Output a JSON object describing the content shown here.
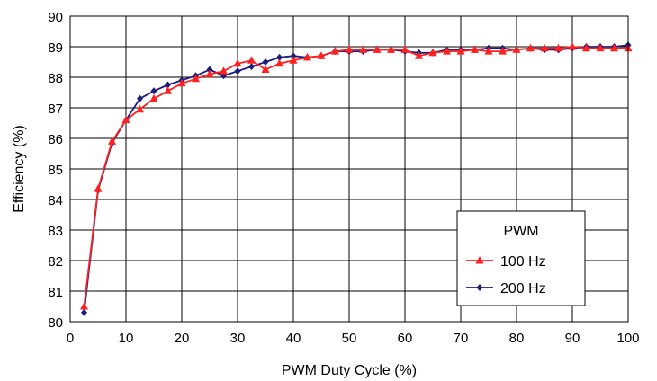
{
  "chart_data": {
    "type": "line",
    "xlabel": "PWM Duty Cycle (%)",
    "ylabel": "Efficiency (%)",
    "xlim": [
      0,
      100
    ],
    "ylim": [
      80,
      90
    ],
    "xticks": [
      0,
      10,
      20,
      30,
      40,
      50,
      60,
      70,
      80,
      90,
      100
    ],
    "yticks": [
      80,
      81,
      82,
      83,
      84,
      85,
      86,
      87,
      88,
      89,
      90
    ],
    "grid": true,
    "legend": {
      "title": "PWM",
      "placement": "bottom-right"
    },
    "x": [
      2.5,
      5,
      7.5,
      10,
      12.5,
      15,
      17.5,
      20,
      22.5,
      25,
      27.5,
      30,
      32.5,
      35,
      37.5,
      40,
      42.5,
      45,
      47.5,
      50,
      52.5,
      55,
      57.5,
      60,
      62.5,
      65,
      67.5,
      70,
      72.5,
      75,
      77.5,
      80,
      82.5,
      85,
      87.5,
      90,
      92.5,
      95,
      97.5,
      100
    ],
    "series": [
      {
        "name": "100 Hz",
        "color": "#ff2020",
        "marker": "triangle",
        "values": [
          80.5,
          84.35,
          85.9,
          86.6,
          86.95,
          87.3,
          87.55,
          87.8,
          87.95,
          88.1,
          88.2,
          88.45,
          88.55,
          88.25,
          88.45,
          88.55,
          88.65,
          88.7,
          88.85,
          88.9,
          88.9,
          88.9,
          88.9,
          88.9,
          88.7,
          88.8,
          88.85,
          88.85,
          88.9,
          88.85,
          88.85,
          88.9,
          88.95,
          88.95,
          88.95,
          89.0,
          88.95,
          88.95,
          88.95,
          88.95
        ]
      },
      {
        "name": "200 Hz",
        "color": "#1c1c7a",
        "marker": "diamond",
        "values": [
          80.3,
          84.3,
          85.85,
          86.6,
          87.3,
          87.55,
          87.75,
          87.9,
          88.05,
          88.25,
          88.05,
          88.2,
          88.35,
          88.5,
          88.65,
          88.7,
          88.65,
          88.7,
          88.85,
          88.85,
          88.85,
          88.9,
          88.9,
          88.85,
          88.8,
          88.8,
          88.9,
          88.9,
          88.9,
          88.95,
          88.95,
          88.9,
          88.95,
          88.9,
          88.9,
          88.95,
          89.0,
          89.0,
          89.0,
          89.05
        ]
      }
    ]
  }
}
